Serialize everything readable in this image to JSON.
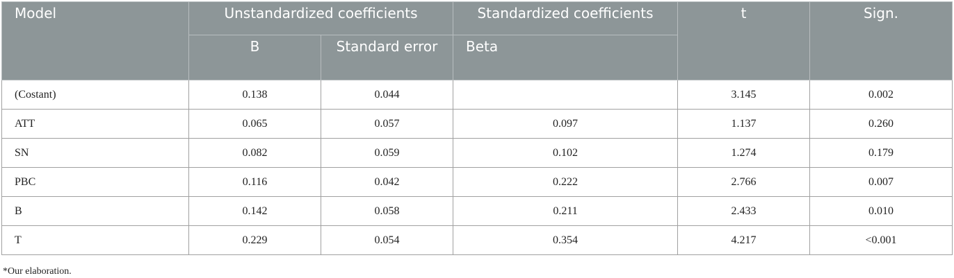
{
  "header": {
    "row1": [
      "Model",
      "Unstandardized coefficients",
      "Standardized coefficients",
      "t",
      "Sign."
    ],
    "row2": [
      "B",
      "Standard error",
      "Beta"
    ]
  },
  "table": {
    "rows": [
      [
        "(Costant)",
        "0.138",
        "0.044",
        null,
        "3.145",
        "0.002"
      ],
      [
        "ATT",
        "0.065",
        "0.057",
        "0.097",
        "1.137",
        "0.260"
      ],
      [
        "SN",
        "0.082",
        "0.059",
        "0.102",
        "1.274",
        "0.179"
      ],
      [
        "PBC",
        "0.116",
        "0.042",
        "0.222",
        "2.766",
        "0.007"
      ],
      [
        "B",
        "0.142",
        "0.058",
        "0.211",
        "2.433",
        "0.010"
      ],
      [
        "T",
        "0.229",
        "0.054",
        "0.354",
        "4.217",
        "<0.001"
      ]
    ]
  },
  "footnote": "*Our elaboration."
}
